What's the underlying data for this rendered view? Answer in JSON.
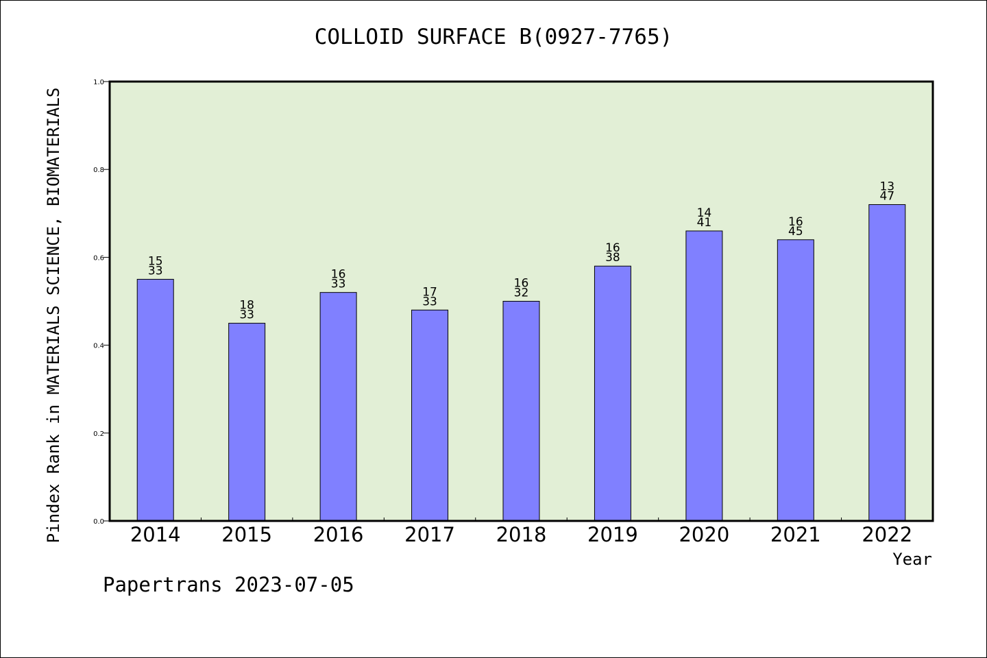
{
  "chart_data": {
    "type": "bar",
    "title": "COLLOID SURFACE B(0927-7765)",
    "xlabel": "Year",
    "ylabel": "Pindex Rank in MATERIALS SCIENCE, BIOMATERIALS",
    "ylim": [
      0,
      1.0
    ],
    "yticks": [
      "0.0",
      "0.2",
      "0.4",
      "0.6",
      "0.8",
      "1.0"
    ],
    "categories": [
      "2014",
      "2015",
      "2016",
      "2017",
      "2018",
      "2019",
      "2020",
      "2021",
      "2022"
    ],
    "values": [
      0.55,
      0.45,
      0.52,
      0.48,
      0.5,
      0.58,
      0.66,
      0.64,
      0.72
    ],
    "rank_labels": [
      "15",
      "18",
      "16",
      "17",
      "16",
      "16",
      "14",
      "16",
      "13"
    ],
    "total_labels": [
      "33",
      "33",
      "33",
      "33",
      "32",
      "38",
      "41",
      "45",
      "47"
    ],
    "grid": false,
    "colors": {
      "plot_background": "#e2efd6",
      "bar_fill": "#8080ff",
      "bar_stroke": "#000000"
    }
  },
  "footer": {
    "note": "Papertrans 2023-07-05"
  }
}
